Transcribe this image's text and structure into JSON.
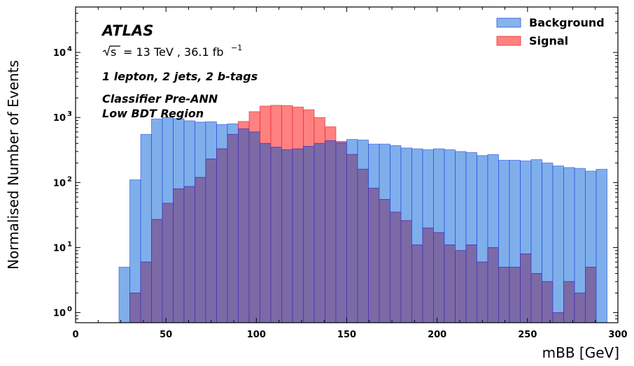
{
  "chart_data": {
    "type": "bar",
    "title": "",
    "xlabel": "mBB [GeV]",
    "ylabel": "Normalised Number of Events",
    "xlim": [
      0,
      300
    ],
    "ylim": [
      0.7,
      50000
    ],
    "yscale": "log",
    "bin_width": 6,
    "bin_start": 24,
    "x_ticks": [
      "0",
      "50",
      "100",
      "150",
      "200",
      "250",
      "300"
    ],
    "y_ticks": [
      {
        "base": "10",
        "exp": "0",
        "value": 1
      },
      {
        "base": "10",
        "exp": "1",
        "value": 10
      },
      {
        "base": "10",
        "exp": "2",
        "value": 100
      },
      {
        "base": "10",
        "exp": "3",
        "value": 1000
      },
      {
        "base": "10",
        "exp": "4",
        "value": 10000
      }
    ],
    "legend_position": "top-right",
    "series": [
      {
        "name": "Background",
        "color": "#5f9be6",
        "edge_color": "#1f3ee0",
        "values": [
          5,
          110,
          550,
          950,
          1000,
          960,
          890,
          850,
          860,
          780,
          800,
          670,
          600,
          400,
          350,
          320,
          330,
          360,
          400,
          440,
          410,
          460,
          450,
          390,
          390,
          370,
          340,
          330,
          320,
          330,
          320,
          300,
          290,
          260,
          270,
          220,
          220,
          215,
          225,
          200,
          180,
          170,
          165,
          150,
          160
        ]
      },
      {
        "name": "Signal",
        "color": "#ff6b6b",
        "edge_color": "#e02020",
        "values": [
          0.45,
          2,
          6,
          27,
          48,
          80,
          87,
          120,
          230,
          330,
          550,
          870,
          1230,
          1500,
          1540,
          1530,
          1450,
          1320,
          1000,
          720,
          430,
          270,
          160,
          82,
          55,
          35,
          26,
          11,
          20,
          17,
          11,
          9,
          11,
          6,
          10,
          5,
          5,
          8,
          4,
          3,
          1,
          3,
          2,
          5,
          0
        ]
      }
    ]
  },
  "annotations": {
    "experiment": "ATLAS",
    "sqrt_s": "s",
    "energy": "= 13 TeV , 36.1 fb",
    "lumi_exp": "−1",
    "selection": "1 lepton, 2 jets, 2 b-tags",
    "classifier": "Classifier Pre-ANN",
    "region": "Low BDT Region"
  },
  "colors": {
    "overlap": "#7b6aa6"
  }
}
